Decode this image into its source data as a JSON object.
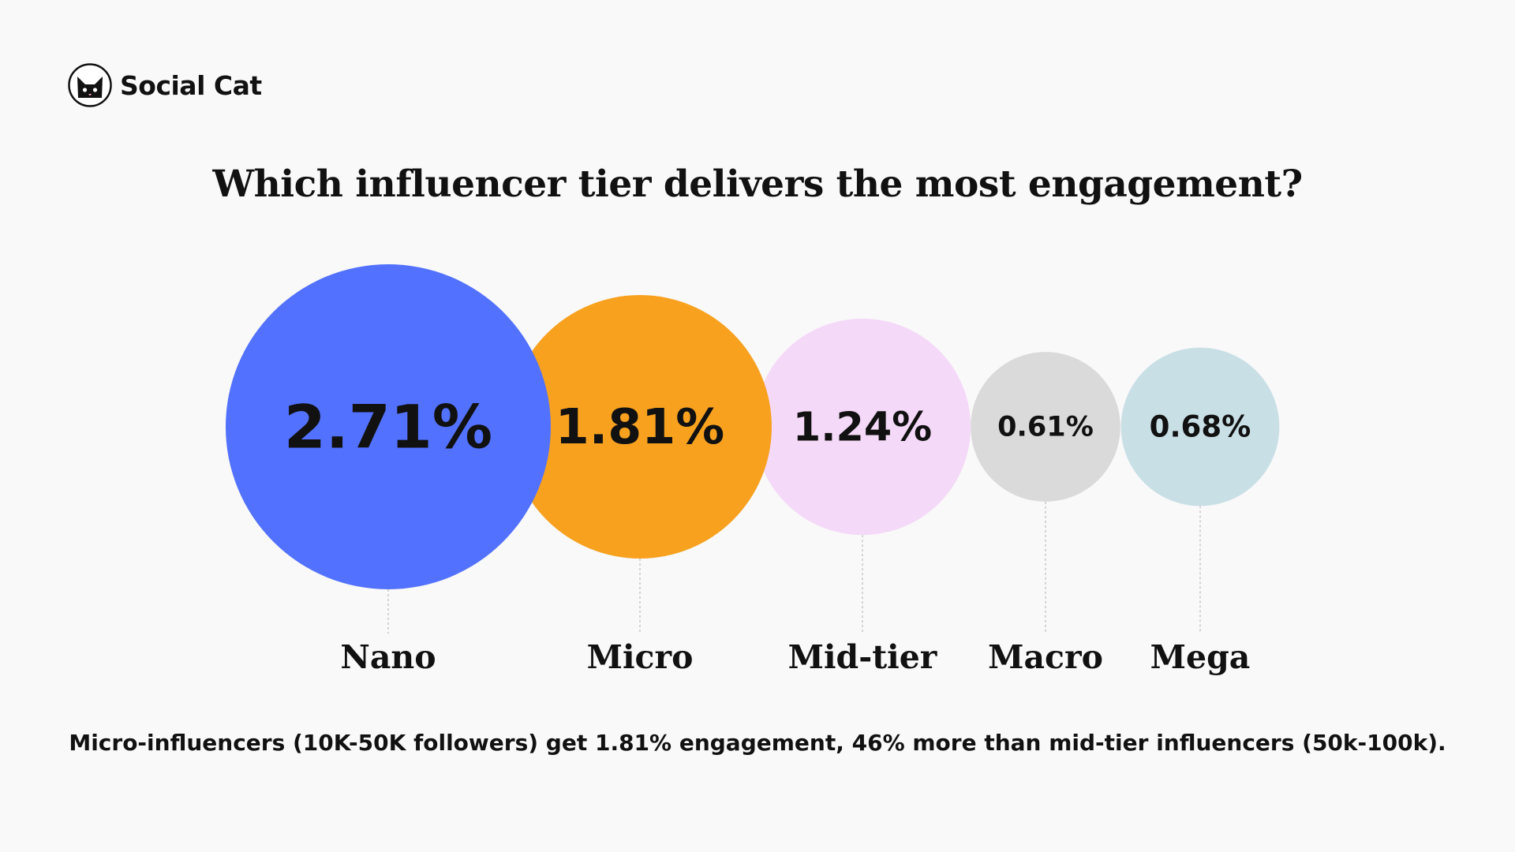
{
  "brand": {
    "name": "Social Cat",
    "logo_icon": "cat-face-icon"
  },
  "footnote": "Micro-influencers (10K-50K followers) get 1.81% engagement, 46% more than mid-tier influencers (50k-100k).",
  "chart_data": {
    "type": "bubble",
    "title": "Which influencer tier delivers the most engagement?",
    "categories": [
      "Nano",
      "Micro",
      "Mid-tier",
      "Macro",
      "Mega"
    ],
    "values": [
      2.71,
      1.81,
      1.24,
      0.61,
      0.68
    ],
    "value_labels": [
      "2.71%",
      "1.81%",
      "1.24%",
      "0.61%",
      "0.68%"
    ],
    "unit": "%",
    "colors": [
      "#5271ff",
      "#f7a11f",
      "#f5d9f8",
      "#dadada",
      "#c9dfe6"
    ],
    "grid": false,
    "legend": "none"
  }
}
